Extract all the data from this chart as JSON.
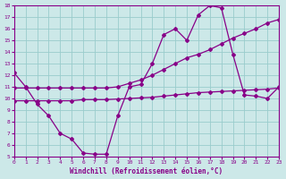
{
  "xlabel": "Windchill (Refroidissement éolien,°C)",
  "background_color": "#cce8e8",
  "grid_color": "#99cccc",
  "line_color": "#880088",
  "xmin": 0,
  "xmax": 23,
  "ymin": 5,
  "ymax": 18,
  "xticks": [
    0,
    1,
    2,
    3,
    4,
    5,
    6,
    7,
    8,
    9,
    10,
    11,
    12,
    13,
    14,
    15,
    16,
    17,
    18,
    19,
    20,
    21,
    22,
    23
  ],
  "yticks": [
    5,
    6,
    7,
    8,
    9,
    10,
    11,
    12,
    13,
    14,
    15,
    16,
    17,
    18
  ],
  "line1_x": [
    0,
    1,
    2,
    3,
    4,
    5,
    6,
    7,
    8,
    9,
    10,
    11,
    12,
    13,
    14,
    15,
    16,
    17,
    18,
    19,
    20,
    21,
    22,
    23
  ],
  "line1_y": [
    12.2,
    11.0,
    9.5,
    8.5,
    7.0,
    6.5,
    5.3,
    5.2,
    5.2,
    8.5,
    11.0,
    11.2,
    13.0,
    15.5,
    16.0,
    15.0,
    17.2,
    18.0,
    17.8,
    13.8,
    10.3,
    10.2,
    10.0,
    11.0
  ],
  "line2_x": [
    0,
    1,
    2,
    3,
    4,
    5,
    6,
    7,
    8,
    9,
    10,
    11,
    12,
    13,
    14,
    15,
    16,
    17,
    18,
    19,
    20,
    21,
    22,
    23
  ],
  "line2_y": [
    10.9,
    10.9,
    10.9,
    10.9,
    10.9,
    10.9,
    10.9,
    10.9,
    10.9,
    11.0,
    11.3,
    11.6,
    12.0,
    12.5,
    13.0,
    13.5,
    13.8,
    14.2,
    14.7,
    15.2,
    15.6,
    16.0,
    16.5,
    16.8
  ],
  "line3_x": [
    0,
    1,
    2,
    3,
    4,
    5,
    6,
    7,
    8,
    9,
    10,
    11,
    12,
    13,
    14,
    15,
    16,
    17,
    18,
    19,
    20,
    21,
    22,
    23
  ],
  "line3_y": [
    9.8,
    9.8,
    9.8,
    9.8,
    9.8,
    9.8,
    9.9,
    9.9,
    9.9,
    9.95,
    10.0,
    10.05,
    10.1,
    10.2,
    10.3,
    10.4,
    10.5,
    10.55,
    10.6,
    10.65,
    10.7,
    10.75,
    10.8,
    10.9
  ]
}
